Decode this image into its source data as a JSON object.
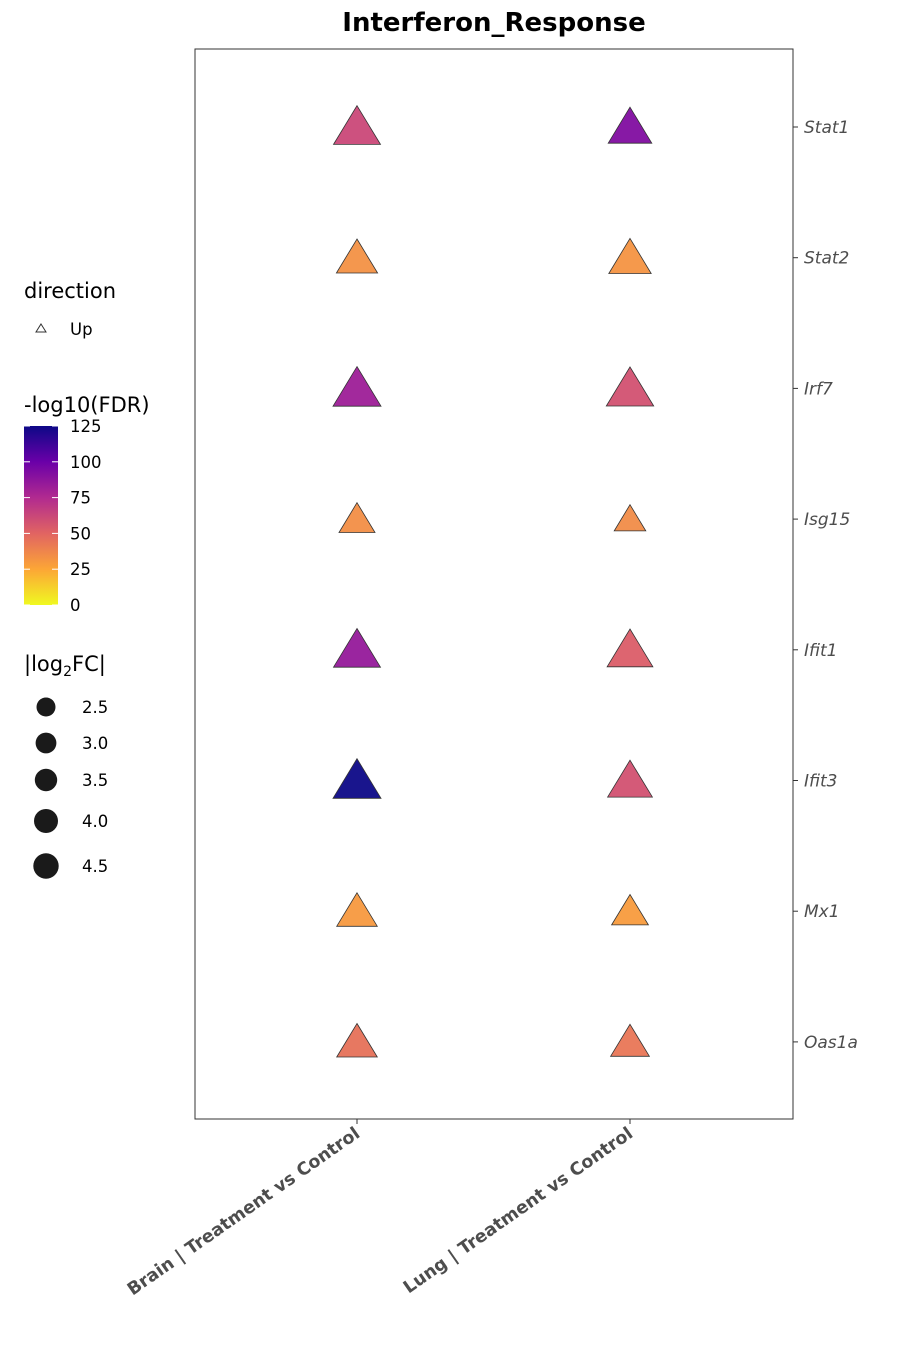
{
  "chart_data": {
    "type": "scatter",
    "title": "Interferon_Response",
    "categories": [
      "Brain | Treatment vs Control",
      "Lung | Treatment vs Control"
    ],
    "genes": [
      "Stat1",
      "Stat2",
      "Irf7",
      "Isg15",
      "Ifit1",
      "Ifit3",
      "Mx1",
      "Oas1a"
    ],
    "points": [
      {
        "gene": "Stat1",
        "comparison": "Brain | Treatment vs Control",
        "direction": "Up",
        "neg_log10_fdr": 62,
        "abs_log2fc": 4.4
      },
      {
        "gene": "Stat1",
        "comparison": "Lung | Treatment vs Control",
        "direction": "Up",
        "neg_log10_fdr": 92,
        "abs_log2fc": 3.8
      },
      {
        "gene": "Stat2",
        "comparison": "Brain | Treatment vs Control",
        "direction": "Up",
        "neg_log10_fdr": 33,
        "abs_log2fc": 3.4
      },
      {
        "gene": "Stat2",
        "comparison": "Lung | Treatment vs Control",
        "direction": "Up",
        "neg_log10_fdr": 32,
        "abs_log2fc": 3.6
      },
      {
        "gene": "Irf7",
        "comparison": "Brain | Treatment vs Control",
        "direction": "Up",
        "neg_log10_fdr": 82,
        "abs_log2fc": 4.6
      },
      {
        "gene": "Irf7",
        "comparison": "Lung | Treatment vs Control",
        "direction": "Up",
        "neg_log10_fdr": 58,
        "abs_log2fc": 4.5
      },
      {
        "gene": "Isg15",
        "comparison": "Brain | Treatment vs Control",
        "direction": "Up",
        "neg_log10_fdr": 34,
        "abs_log2fc": 2.6
      },
      {
        "gene": "Isg15",
        "comparison": "Lung | Treatment vs Control",
        "direction": "Up",
        "neg_log10_fdr": 35,
        "abs_log2fc": 2.0
      },
      {
        "gene": "Ifit1",
        "comparison": "Brain | Treatment vs Control",
        "direction": "Up",
        "neg_log10_fdr": 85,
        "abs_log2fc": 4.4
      },
      {
        "gene": "Ifit1",
        "comparison": "Lung | Treatment vs Control",
        "direction": "Up",
        "neg_log10_fdr": 53,
        "abs_log2fc": 4.2
      },
      {
        "gene": "Ifit3",
        "comparison": "Brain | Treatment vs Control",
        "direction": "Up",
        "neg_log10_fdr": 125,
        "abs_log2fc": 4.6
      },
      {
        "gene": "Ifit3",
        "comparison": "Lung | Treatment vs Control",
        "direction": "Up",
        "neg_log10_fdr": 58,
        "abs_log2fc": 4.0
      },
      {
        "gene": "Mx1",
        "comparison": "Brain | Treatment vs Control",
        "direction": "Up",
        "neg_log10_fdr": 30,
        "abs_log2fc": 3.3
      },
      {
        "gene": "Mx1",
        "comparison": "Lung | Treatment vs Control",
        "direction": "Up",
        "neg_log10_fdr": 29,
        "abs_log2fc": 2.7
      },
      {
        "gene": "Oas1a",
        "comparison": "Brain | Treatment vs Control",
        "direction": "Up",
        "neg_log10_fdr": 45,
        "abs_log2fc": 3.3
      },
      {
        "gene": "Oas1a",
        "comparison": "Lung | Treatment vs Control",
        "direction": "Up",
        "neg_log10_fdr": 43,
        "abs_log2fc": 3.0
      }
    ],
    "legend": {
      "direction": {
        "title": "direction",
        "entries": [
          "Up"
        ]
      },
      "color": {
        "title": "-log10(FDR)",
        "breaks": [
          "125",
          "100",
          "75",
          "50",
          "25",
          "0"
        ],
        "range": [
          0,
          125
        ],
        "palette": [
          "#f0f921",
          "#fca636",
          "#e16462",
          "#b12a90",
          "#6a00a8",
          "#0d0887"
        ]
      },
      "size": {
        "title_main": "|log",
        "title_sub": "2",
        "title_end": "FC|",
        "entries": [
          "2.5",
          "3.0",
          "3.5",
          "4.0",
          "4.5"
        ]
      }
    },
    "grid": false,
    "legend_position": "left",
    "y_axis_position": "right"
  }
}
